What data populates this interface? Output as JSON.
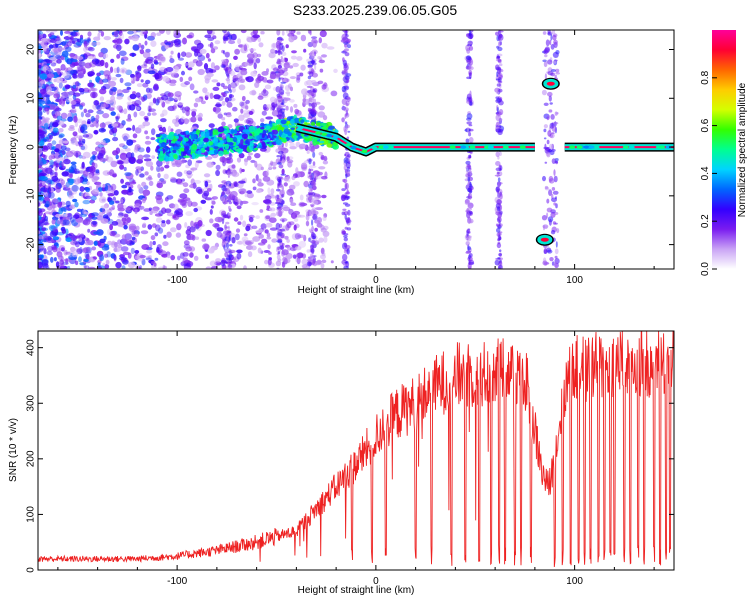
{
  "title": "S233.2025.239.06.05.G05",
  "chart_data": [
    {
      "type": "heatmap",
      "name": "spectrogram",
      "xlabel": "Height of straight line (km)",
      "ylabel": "Frequency (Hz)",
      "xlim": [
        -170,
        150
      ],
      "ylim": [
        -25,
        24
      ],
      "xticks": [
        -100,
        0,
        100
      ],
      "xtick_labels": [
        "-100",
        "0",
        "100"
      ],
      "yticks": [
        -20,
        -10,
        0,
        10,
        20
      ],
      "ytick_labels": [
        "-20",
        "-10",
        "0",
        "10",
        "20"
      ],
      "ridge": {
        "description_points_x": [
          -105,
          -60,
          -50,
          -40,
          -30,
          -20,
          -12,
          -5,
          0,
          20,
          40,
          60,
          80
        ],
        "description_points_y": [
          0,
          2,
          3,
          4,
          3,
          2,
          0,
          -1,
          0,
          0,
          0,
          0,
          0
        ]
      },
      "ridge_segments": [
        {
          "x": [
            -20,
            80
          ],
          "y": 0
        },
        {
          "x": [
            95,
            150
          ],
          "y": 0
        }
      ],
      "features": [
        {
          "x": 85,
          "y": -19,
          "label": "low-frequency blob"
        },
        {
          "x": 88,
          "y": 13,
          "label": "high-frequency blob"
        }
      ],
      "colorbar": {
        "label": "Normalized spectral amplitude",
        "range": [
          0.0,
          1.0
        ],
        "ticks": [
          0.0,
          0.2,
          0.4,
          0.6,
          0.8
        ],
        "tick_labels": [
          "0.0",
          "0.2",
          "0.4",
          "0.6",
          "0.8"
        ],
        "colors": [
          "#ffffff",
          "#c9a3f5",
          "#7a1cf0",
          "#3300ff",
          "#0066ff",
          "#00d4ff",
          "#00ff90",
          "#33ff00",
          "#d4ff00",
          "#ffcc00",
          "#ff6600",
          "#ff0033",
          "#ff0099"
        ]
      }
    },
    {
      "type": "line",
      "name": "snr",
      "xlabel": "Height of straight line (km)",
      "ylabel": "SNR (10 * v/v)",
      "xlim": [
        -170,
        150
      ],
      "ylim": [
        0,
        430
      ],
      "xticks": [
        -100,
        0,
        100
      ],
      "xtick_labels": [
        "-100",
        "0",
        "100"
      ],
      "yticks": [
        0,
        100,
        200,
        300,
        400
      ],
      "ytick_labels": [
        "0",
        "100",
        "200",
        "300",
        "400"
      ],
      "color": "#ee2222",
      "trend": {
        "x": [
          -170,
          -120,
          -100,
          -80,
          -60,
          -40,
          -30,
          -20,
          -10,
          0,
          10,
          20,
          30,
          40,
          50,
          60,
          70,
          75,
          80,
          84,
          87,
          90,
          95,
          100,
          120,
          150
        ],
        "y": [
          20,
          20,
          25,
          35,
          50,
          70,
          110,
          150,
          190,
          240,
          280,
          300,
          330,
          350,
          350,
          355,
          360,
          350,
          250,
          170,
          150,
          200,
          330,
          360,
          370,
          380
        ]
      },
      "dropouts_x": [
        -12,
        -2,
        5,
        20,
        28,
        38,
        45,
        52,
        58,
        62,
        65,
        70,
        73,
        78,
        90,
        94,
        98,
        102,
        105,
        108,
        112,
        115,
        118,
        120,
        125,
        128,
        132,
        135,
        140,
        143,
        146,
        148
      ]
    }
  ]
}
